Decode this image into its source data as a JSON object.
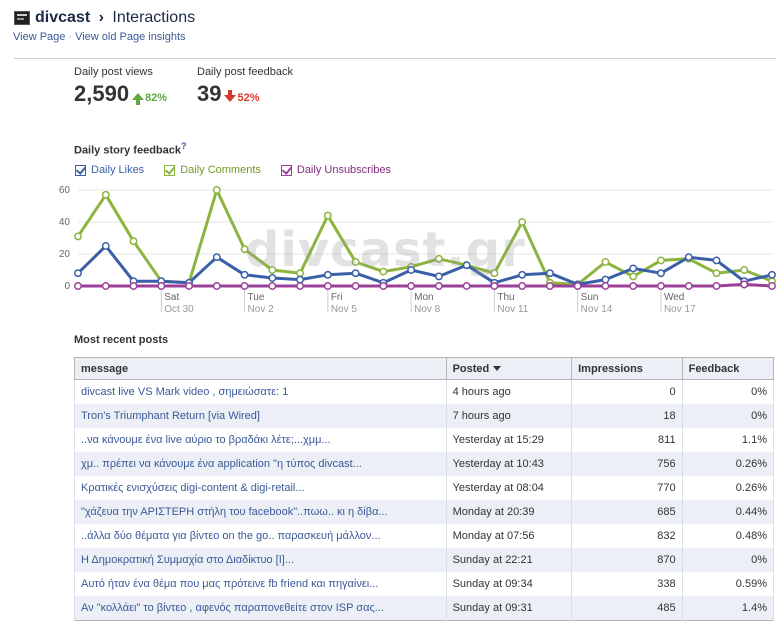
{
  "header": {
    "page_name": "divcast",
    "separator": "›",
    "section": "Interactions",
    "links": [
      "View Page",
      "View old Page insights"
    ],
    "link_separator": "·"
  },
  "stats": {
    "views": {
      "label": "Daily post views",
      "value": "2,590",
      "change": "82%",
      "direction": "up",
      "color": "#5fa83f"
    },
    "feedback": {
      "label": "Daily post feedback",
      "value": "39",
      "change": "52%",
      "direction": "down",
      "color": "#d5382c"
    }
  },
  "story_feedback": {
    "title": "Daily story feedback",
    "help": "?",
    "legend": [
      {
        "name": "Daily Likes",
        "color": "#3a5fa8",
        "checked": true
      },
      {
        "name": "Daily Comments",
        "color": "#8cb43f",
        "checked": true
      },
      {
        "name": "Daily Unsubscribes",
        "color": "#9b3f98",
        "checked": true
      }
    ]
  },
  "chart_data": {
    "type": "line",
    "ylim": [
      0,
      60
    ],
    "yticks": [
      0,
      20,
      40,
      60
    ],
    "x_day_labels": [
      {
        "index": 3,
        "label": "Sat"
      },
      {
        "index": 6,
        "label": "Tue"
      },
      {
        "index": 9,
        "label": "Fri"
      },
      {
        "index": 12,
        "label": "Mon"
      },
      {
        "index": 15,
        "label": "Thu"
      },
      {
        "index": 18,
        "label": "Sun"
      },
      {
        "index": 21,
        "label": "Wed"
      }
    ],
    "x_date_labels": [
      {
        "index": 3,
        "label": "Oct 30"
      },
      {
        "index": 6,
        "label": "Nov 2"
      },
      {
        "index": 9,
        "label": "Nov 5"
      },
      {
        "index": 12,
        "label": "Nov 8"
      },
      {
        "index": 15,
        "label": "Nov 11"
      },
      {
        "index": 18,
        "label": "Nov 14"
      },
      {
        "index": 21,
        "label": "Nov 17"
      }
    ],
    "series": [
      {
        "name": "Daily Comments",
        "color": "#8cb43f",
        "values": [
          31,
          57,
          28,
          3,
          2,
          60,
          23,
          10,
          8,
          44,
          15,
          9,
          12,
          17,
          13,
          8,
          40,
          2,
          1,
          15,
          6,
          16,
          17,
          8,
          10,
          3
        ]
      },
      {
        "name": "Daily Likes",
        "color": "#3a5fa8",
        "values": [
          8,
          25,
          3,
          3,
          2,
          18,
          7,
          5,
          4,
          7,
          8,
          2,
          10,
          6,
          13,
          2,
          7,
          8,
          1,
          4,
          11,
          8,
          18,
          16,
          3,
          7
        ]
      },
      {
        "name": "Daily Unsubscribes",
        "color": "#9b3f98",
        "values": [
          0,
          0,
          0,
          0,
          0,
          0,
          0,
          0,
          0,
          0,
          0,
          0,
          0,
          0,
          0,
          0,
          0,
          0,
          0,
          0,
          0,
          0,
          0,
          0,
          1,
          0
        ]
      }
    ]
  },
  "watermark": "divcast.gr",
  "recent_posts": {
    "title": "Most recent posts",
    "columns": {
      "message": "message",
      "posted": "Posted",
      "impressions": "Impressions",
      "feedback": "Feedback"
    },
    "rows": [
      {
        "message": "divcast live VS Mark video , σημειώσατε: 1",
        "posted": "4 hours ago",
        "impressions": "0",
        "feedback": "0%"
      },
      {
        "message": "Tron's Triumphant Return [via Wired]",
        "posted": "7 hours ago",
        "impressions": "18",
        "feedback": "0%"
      },
      {
        "message": "..να κάνουμε ένα live αύριο το βραδάκι λέτε;...χμμ...",
        "posted": "Yesterday at 15:29",
        "impressions": "811",
        "feedback": "1.1%"
      },
      {
        "message": "χμ.. πρέπει να κάνουμε ένα application \"η τύπος divcast...",
        "posted": "Yesterday at 10:43",
        "impressions": "756",
        "feedback": "0.26%"
      },
      {
        "message": "Κρατικές ενισχύσεις digi-content & digi-retail...",
        "posted": "Yesterday at 08:04",
        "impressions": "770",
        "feedback": "0.26%"
      },
      {
        "message": "\"χάζευα την ΑΡΙΣΤΕΡΗ στήλη του facebook\"..πωω.. κι η δίβα...",
        "posted": "Monday at 20:39",
        "impressions": "685",
        "feedback": "0.44%"
      },
      {
        "message": "..άλλα δύο θέματα για βίντεο on the go.. παρασκευή μάλλον...",
        "posted": "Monday at 07:56",
        "impressions": "832",
        "feedback": "0.48%"
      },
      {
        "message": "Η Δημοκρατική Συμμαχία στο Διαδίκτυο [I]...",
        "posted": "Sunday at 22:21",
        "impressions": "870",
        "feedback": "0%"
      },
      {
        "message": "Αυτό ήταν ένα θέμα που μας πρότεινε fb friend και πηγαίνει...",
        "posted": "Sunday at 09:34",
        "impressions": "338",
        "feedback": "0.59%"
      },
      {
        "message": "Αν \"κολλάει\" το βίντεο , αφενός παραπονεθείτε στον ISP σας...",
        "posted": "Sunday at 09:31",
        "impressions": "485",
        "feedback": "1.4%"
      }
    ]
  }
}
